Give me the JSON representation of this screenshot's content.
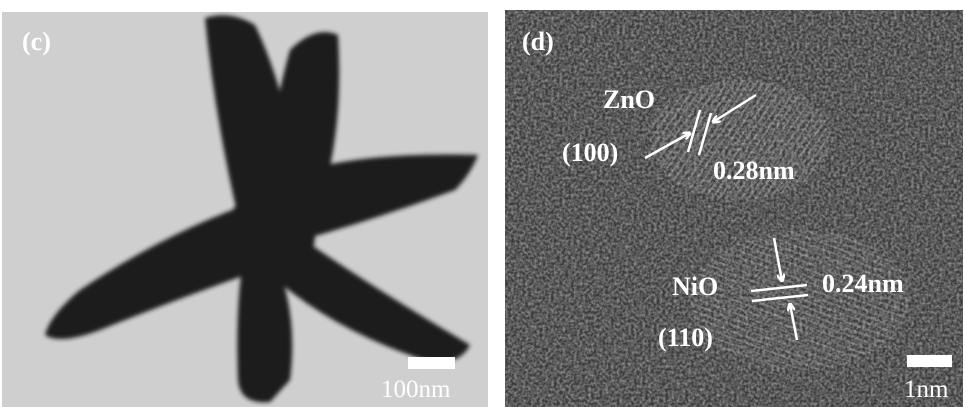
{
  "panels": [
    {
      "label": "(c)",
      "scale_bar": "100nm"
    },
    {
      "label": "(d)",
      "scale_bar": "1nm",
      "annotations": [
        {
          "material": "ZnO",
          "plane": "(100)",
          "spacing": "0.28nm"
        },
        {
          "material": "NiO",
          "plane": "(110)",
          "spacing": "0.24nm"
        }
      ]
    }
  ]
}
